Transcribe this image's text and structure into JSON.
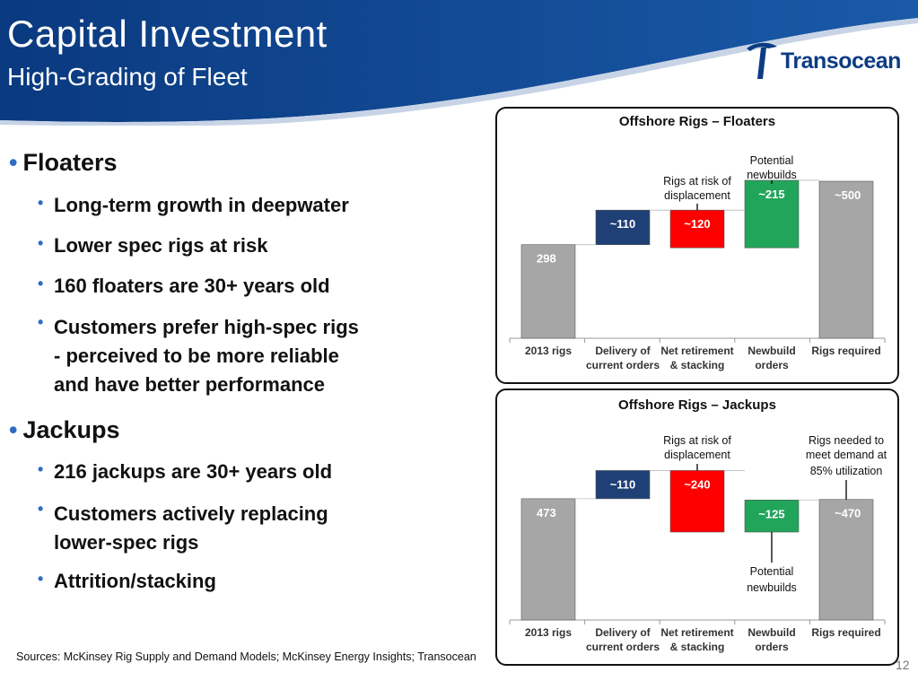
{
  "header": {
    "title": "Capital Investment",
    "subtitle": "High-Grading of Fleet",
    "logo_text": "Transocean",
    "banner_color": "#0d3c84"
  },
  "bullets": {
    "floaters": "Floaters",
    "floaters_items": [
      "Long-term growth in deepwater",
      "Lower spec rigs at risk",
      "160 floaters are 30+ years old"
    ],
    "floaters_item4_lines": [
      "Customers prefer high-spec rigs",
      "- perceived to be more reliable",
      "and have better performance"
    ],
    "jackups": "Jackups",
    "jackups_item1": "216 jackups are 30+ years old",
    "jackups_item2_lines": [
      "Customers actively replacing",
      "lower-spec rigs"
    ],
    "jackups_item3": "Attrition/stacking"
  },
  "footer": {
    "sources": "Sources: McKinsey Rig Supply and Demand Models;  McKinsey Energy Insights; Transocean",
    "page_number": "12"
  },
  "chart_data": [
    {
      "type": "waterfall",
      "title": "Offshore Rigs – Floaters",
      "categories": [
        [
          "2013 rigs"
        ],
        [
          "Delivery of",
          "current orders"
        ],
        [
          "Net retirement",
          "& stacking"
        ],
        [
          "Newbuild",
          "orders"
        ],
        [
          "Rigs required"
        ]
      ],
      "bars": [
        {
          "label": "298",
          "base": 0,
          "value": 298,
          "color": "#a6a6a6"
        },
        {
          "label": "~110",
          "base": 298,
          "value": 110,
          "color": "#1f3f77"
        },
        {
          "label": "~120",
          "base": 288,
          "value": 120,
          "color": "#ff0000"
        },
        {
          "label": "~215",
          "base": 288,
          "value": 215,
          "color": "#21a55a"
        },
        {
          "label": "~500",
          "base": 0,
          "value": 500,
          "color": "#a6a6a6"
        }
      ],
      "annotations": [
        {
          "lines": [
            "Rigs at risk of",
            "displacement"
          ],
          "bar": 2
        },
        {
          "lines": [
            "Potential",
            "newbuilds"
          ],
          "bar": 3
        }
      ],
      "ylim": [
        0,
        560
      ]
    },
    {
      "type": "waterfall",
      "title": "Offshore Rigs – Jackups",
      "categories": [
        [
          "2013 rigs"
        ],
        [
          "Delivery of",
          "current orders"
        ],
        [
          "Net retirement",
          "& stacking"
        ],
        [
          "Newbuild",
          "orders"
        ],
        [
          "Rigs required"
        ]
      ],
      "bars": [
        {
          "label": "473",
          "base": 0,
          "value": 473,
          "color": "#a6a6a6"
        },
        {
          "label": "~110",
          "base": 473,
          "value": 110,
          "color": "#1f3f77"
        },
        {
          "label": "~240",
          "base": 343,
          "value": 240,
          "color": "#ff0000"
        },
        {
          "label": "~125",
          "base": 343,
          "value": 125,
          "color": "#21a55a"
        },
        {
          "label": "~470",
          "base": 0,
          "value": 470,
          "color": "#a6a6a6"
        }
      ],
      "annotations": [
        {
          "lines": [
            "Rigs at risk of",
            "displacement"
          ],
          "bar": 2
        },
        {
          "lines": [
            "Rigs needed to",
            "meet demand at",
            "85% utilization"
          ],
          "bar": 4
        },
        {
          "lines": [
            "Potential",
            "newbuilds"
          ],
          "bar": 3
        }
      ],
      "ylim": [
        0,
        700
      ]
    }
  ]
}
